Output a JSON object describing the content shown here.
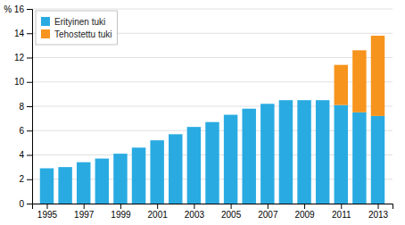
{
  "chart_data": {
    "type": "bar",
    "stacked": true,
    "x": [
      1995,
      1996,
      1997,
      1998,
      1999,
      2000,
      2001,
      2002,
      2003,
      2004,
      2005,
      2006,
      2007,
      2008,
      2009,
      2010,
      2011,
      2012,
      2013
    ],
    "series": [
      {
        "name": "Erityinen tuki",
        "color": "#29abe2",
        "values": [
          2.9,
          3.0,
          3.4,
          3.7,
          4.1,
          4.6,
          5.2,
          5.7,
          6.3,
          6.7,
          7.3,
          7.8,
          8.2,
          8.5,
          8.5,
          8.5,
          8.1,
          7.5,
          7.2
        ]
      },
      {
        "name": "Tehostettu tuki",
        "color": "#f7941d",
        "values": [
          0,
          0,
          0,
          0,
          0,
          0,
          0,
          0,
          0,
          0,
          0,
          0,
          0,
          0,
          0,
          0,
          3.3,
          5.1,
          6.6
        ]
      }
    ],
    "xlim": [
      1994.2,
      2013.8
    ],
    "xticks": [
      1995,
      1997,
      1999,
      2001,
      2003,
      2005,
      2007,
      2009,
      2011,
      2013
    ],
    "ylim": [
      0,
      16
    ],
    "yticks": [
      0,
      2,
      4,
      6,
      8,
      10,
      12,
      14,
      {
        "value": 16,
        "label": "% 16"
      }
    ],
    "grid": true,
    "legend": "upper left"
  }
}
